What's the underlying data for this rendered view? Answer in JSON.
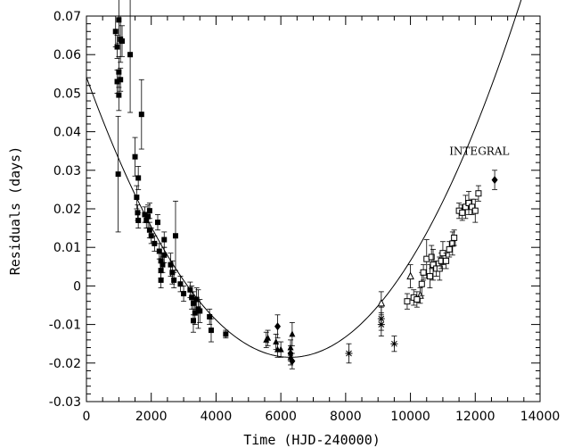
{
  "chart_data": {
    "type": "scatter",
    "title": "",
    "xlabel": "Time (HJD-240000)",
    "ylabel": "Residuals (days)",
    "xlim": [
      0,
      14000
    ],
    "ylim": [
      -0.03,
      0.07
    ],
    "x_ticks": [
      0,
      2000,
      4000,
      6000,
      8000,
      10000,
      12000,
      14000
    ],
    "y_ticks": [
      -0.03,
      -0.02,
      -0.01,
      0,
      0.01,
      0.02,
      0.03,
      0.04,
      0.05,
      0.06,
      0.07
    ],
    "x_tick_labels": [
      "0",
      "2000",
      "4000",
      "6000",
      "8000",
      "10000",
      "12000",
      "14000"
    ],
    "y_tick_labels": [
      "-0.03",
      "-0.02",
      "-0.01",
      "0",
      "0.01",
      "0.02",
      "0.03",
      "0.04",
      "0.05",
      "0.06",
      "0.07"
    ],
    "grid": false,
    "fit_curve": {
      "type": "parabola",
      "vertex_x": 6300,
      "vertex_y": -0.0185,
      "a": 1.83e-09,
      "x_range": [
        0,
        14000
      ]
    },
    "annotations": [
      {
        "text": "INTEGRAL",
        "x": 11200,
        "y": 0.034
      }
    ],
    "series": [
      {
        "marker": "filled-square",
        "points": [
          [
            900,
            0.066,
            0.004
          ],
          [
            950,
            0.062,
            0.003
          ],
          [
            1000,
            0.069,
            0.006
          ],
          [
            1050,
            0.064,
            0.006
          ],
          [
            1100,
            0.0635,
            0.004
          ],
          [
            1000,
            0.0555,
            0.004
          ],
          [
            1050,
            0.0535,
            0.003
          ],
          [
            950,
            0.053,
            0.003
          ],
          [
            1000,
            0.0495,
            0.004
          ],
          [
            980,
            0.029,
            0.015
          ],
          [
            1350,
            0.06,
            0.015
          ],
          [
            1500,
            0.0335,
            0.005
          ],
          [
            1550,
            0.023,
            0.003
          ],
          [
            1600,
            0.028,
            0.003
          ],
          [
            1700,
            0.0445,
            0.009
          ],
          [
            1580,
            0.019,
            0.002
          ],
          [
            1600,
            0.017,
            0.002
          ],
          [
            1800,
            0.0185,
            0.002
          ],
          [
            1850,
            0.017,
            0.002
          ],
          [
            1900,
            0.018,
            0.003
          ],
          [
            1950,
            0.0195,
            0.002
          ],
          [
            1950,
            0.0145,
            0.002
          ],
          [
            2000,
            0.013,
            0.002
          ],
          [
            2100,
            0.011,
            0.002
          ],
          [
            2200,
            0.0165,
            0.002
          ],
          [
            2250,
            0.009,
            0.002
          ],
          [
            2300,
            0.0065,
            0.002
          ],
          [
            2300,
            0.004,
            0.002
          ],
          [
            2300,
            0.0015,
            0.002
          ],
          [
            2350,
            0.0055,
            0.002
          ],
          [
            2400,
            0.008,
            0.002
          ],
          [
            2400,
            0.012,
            0.002
          ],
          [
            2600,
            0.0055,
            0.003
          ],
          [
            2650,
            0.0035,
            0.003
          ],
          [
            2700,
            0.0015,
            0.002
          ],
          [
            2750,
            0.013,
            0.009
          ],
          [
            2900,
            0.0005,
            0.002
          ],
          [
            3000,
            -0.002,
            0.002
          ],
          [
            3200,
            -0.001,
            0.002
          ],
          [
            3250,
            -0.003,
            0.003
          ],
          [
            3300,
            -0.0045,
            0.003
          ],
          [
            3350,
            -0.007,
            0.003
          ],
          [
            3300,
            -0.009,
            0.003
          ],
          [
            3400,
            -0.0035,
            0.003
          ],
          [
            3450,
            -0.006,
            0.005
          ],
          [
            3500,
            -0.0065,
            0.003
          ],
          [
            3800,
            -0.008,
            0.002
          ],
          [
            3850,
            -0.0115,
            0.003
          ],
          [
            4300,
            -0.0125,
            0.001
          ]
        ]
      },
      {
        "marker": "filled-triangle",
        "points": [
          [
            5550,
            -0.014,
            0.002
          ],
          [
            5600,
            -0.0135,
            0.002
          ],
          [
            5850,
            -0.0145,
            0.002
          ],
          [
            5900,
            -0.0165,
            0.002
          ],
          [
            6000,
            -0.0165,
            0.002
          ],
          [
            6300,
            -0.016,
            0.002
          ],
          [
            6350,
            -0.0125,
            0.003
          ],
          [
            6300,
            -0.0185,
            0.002
          ]
        ]
      },
      {
        "marker": "filled-diamond",
        "points": [
          [
            5900,
            -0.0105,
            0.003
          ],
          [
            6350,
            -0.0195,
            0.002
          ],
          [
            6300,
            -0.0175,
            0.002
          ],
          [
            12600,
            0.0275,
            0.0025
          ]
        ]
      },
      {
        "marker": "asterisk",
        "points": [
          [
            8100,
            -0.0175,
            0.0025
          ],
          [
            9100,
            -0.0085,
            0.003
          ],
          [
            9100,
            -0.01,
            0.003
          ],
          [
            9500,
            -0.015,
            0.002
          ]
        ]
      },
      {
        "marker": "open-triangle",
        "points": [
          [
            9100,
            -0.0045,
            0.003
          ],
          [
            10000,
            0.0025,
            0.003
          ],
          [
            10300,
            -0.0025,
            0.002
          ]
        ]
      },
      {
        "marker": "open-square",
        "points": [
          [
            9900,
            -0.004,
            0.002
          ],
          [
            10100,
            -0.003,
            0.002
          ],
          [
            10200,
            -0.0035,
            0.002
          ],
          [
            10350,
            0.0005,
            0.003
          ],
          [
            10400,
            0.0035,
            0.002
          ],
          [
            10500,
            0.007,
            0.005
          ],
          [
            10600,
            0.0025,
            0.003
          ],
          [
            10650,
            0.0075,
            0.003
          ],
          [
            10700,
            0.0055,
            0.004
          ],
          [
            10800,
            0.0045,
            0.002
          ],
          [
            10900,
            0.0045,
            0.003
          ],
          [
            10950,
            0.0065,
            0.002
          ],
          [
            11000,
            0.0085,
            0.003
          ],
          [
            11100,
            0.0065,
            0.002
          ],
          [
            11200,
            0.0095,
            0.002
          ],
          [
            11300,
            0.011,
            0.003
          ],
          [
            11350,
            0.0125,
            0.002
          ],
          [
            11500,
            0.0195,
            0.002
          ],
          [
            11600,
            0.019,
            0.002
          ],
          [
            11700,
            0.0205,
            0.003
          ],
          [
            11800,
            0.0215,
            0.003
          ],
          [
            11900,
            0.0205,
            0.002
          ],
          [
            12000,
            0.0195,
            0.003
          ],
          [
            12100,
            0.024,
            0.002
          ]
        ]
      }
    ]
  }
}
